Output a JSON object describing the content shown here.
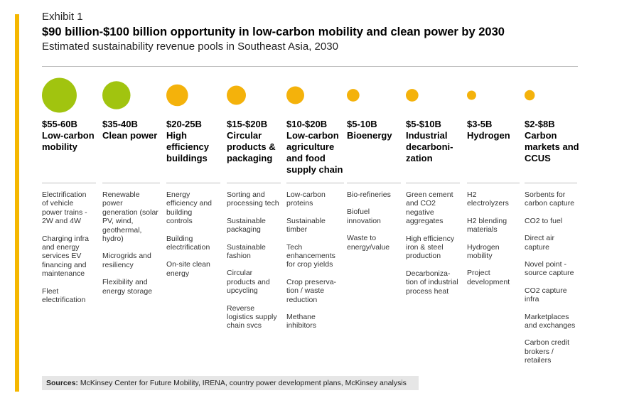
{
  "header": {
    "exhibit": "Exhibit 1",
    "title": "$90 billion-$100 billion opportunity in low-carbon mobility and clean power by 2030",
    "subtitle": "Estimated sustainability revenue pools in Southeast Asia, 2030"
  },
  "colors": {
    "green": "#a1c40f",
    "orange": "#f4b20b",
    "accent": "#f5b700"
  },
  "chart_data": {
    "type": "bubble",
    "title": "$90 billion-$100 billion opportunity in low-carbon mobility and clean power by 2030",
    "subtitle": "Estimated sustainability revenue pools in Southeast Asia, 2030",
    "unit": "USD billion",
    "categories": [
      {
        "value": "$55-60B",
        "label": "Low-carbon mobility",
        "low": 55,
        "high": 60,
        "color": "green",
        "items": [
          "Electrification of vehicle power trains - 2W and 4W",
          "Charging infra and energy services EV financing and maintenance",
          "Fleet electrification"
        ]
      },
      {
        "value": "$35-40B",
        "label": "Clean power",
        "low": 35,
        "high": 40,
        "color": "green",
        "items": [
          "Renewable power generation (solar PV, wind, geothermal, hydro)",
          "Microgrids and resiliency",
          "Flexibility and energy storage"
        ]
      },
      {
        "value": "$20-25B",
        "label": "High efficiency buildings",
        "low": 20,
        "high": 25,
        "color": "orange",
        "items": [
          "Energy efficiency and building controls",
          "Building electrification",
          "On-site clean energy"
        ]
      },
      {
        "value": "$15-$20B",
        "label": "Circular products & packaging",
        "low": 15,
        "high": 20,
        "color": "orange",
        "items": [
          "Sorting and processing tech",
          "Sustainable packaging",
          "Sustainable fashion",
          "Circular products and upcycling",
          "Reverse logistics supply chain svcs"
        ]
      },
      {
        "value": "$10-$20B",
        "label": "Low-carbon agriculture and food supply chain",
        "low": 10,
        "high": 20,
        "color": "orange",
        "items": [
          "Low-carbon proteins",
          "Sustainable timber",
          "Tech enhancements for crop yields",
          "Crop preserva-tion / waste reduction",
          "Methane inhibitors"
        ]
      },
      {
        "value": "$5-10B",
        "label": "Bioenergy",
        "low": 5,
        "high": 10,
        "color": "orange",
        "items": [
          "Bio-refineries",
          "Biofuel innovation",
          "Waste to energy/value"
        ]
      },
      {
        "value": "$5-$10B",
        "label": "Industrial decarboni-zation",
        "low": 5,
        "high": 10,
        "color": "orange",
        "items": [
          "Green cement and CO2 negative aggregates",
          "High efficiency iron & steel production",
          "Decarboniza-tion of industrial process heat"
        ]
      },
      {
        "value": "$3-5B",
        "label": "Hydrogen",
        "low": 3,
        "high": 5,
        "color": "orange",
        "items": [
          "H2 electrolyzers",
          "H2 blending materials",
          "Hydrogen mobility",
          "Project development"
        ]
      },
      {
        "value": "$2-$8B",
        "label": "Carbon markets and CCUS",
        "low": 2,
        "high": 8,
        "color": "orange",
        "items": [
          "Sorbents for carbon capture",
          "CO2 to fuel",
          "Direct air capture",
          "Novel point - source capture",
          "CO2 capture infra",
          "Marketplaces and exchanges",
          "Carbon credit brokers / retailers"
        ]
      }
    ]
  },
  "sources": {
    "label": "Sources:",
    "text": "McKinsey Center for Future Mobility, IRENA, country power development plans, McKinsey analysis"
  }
}
